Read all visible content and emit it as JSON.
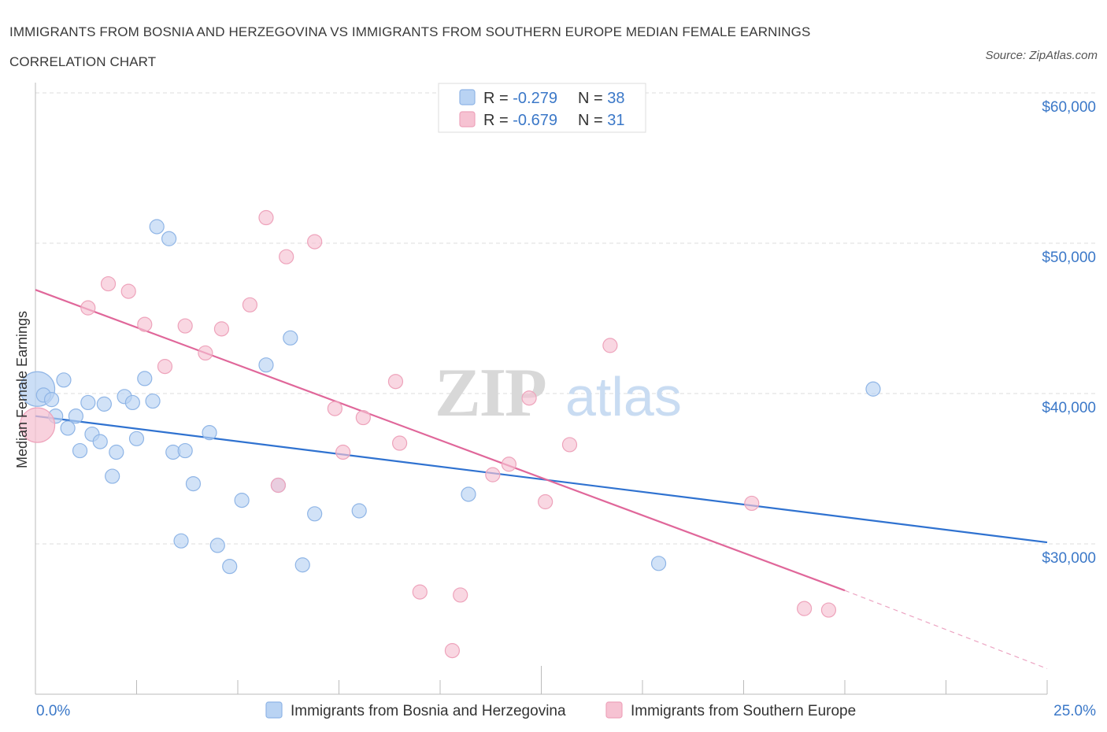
{
  "header": {
    "title_line1": "IMMIGRANTS FROM BOSNIA AND HERZEGOVINA VS IMMIGRANTS FROM SOUTHERN EUROPE MEDIAN FEMALE EARNINGS",
    "title_line2": "CORRELATION CHART",
    "source": "Source: ZipAtlas.com"
  },
  "watermark": {
    "zip": "ZIP",
    "atlas": "atlas"
  },
  "colors": {
    "blue_fill": "#b9d3f3",
    "blue_stroke": "#8fb5e6",
    "blue_line": "#2f72d0",
    "pink_fill": "#f6c2d2",
    "pink_stroke": "#eea3bb",
    "pink_line": "#e0679a",
    "grid": "#dddddd",
    "axis": "#bbbbbb",
    "accent_text": "#3b78c8"
  },
  "legend": {
    "rows": [
      {
        "r_label": "R = ",
        "r_value": "-0.279",
        "n_label": "N = ",
        "n_value": "38"
      },
      {
        "r_label": "R = ",
        "r_value": "-0.679",
        "n_label": "N = ",
        "n_value": "31"
      }
    ]
  },
  "chart_data": {
    "type": "scatter",
    "ylabel": "Median Female Earnings",
    "xlim": [
      0,
      25
    ],
    "ylim": [
      20000,
      62000
    ],
    "x_tick_labels": [
      "0.0%",
      "25.0%"
    ],
    "y_ticks": [
      {
        "value": 30000,
        "label": "$30,000"
      },
      {
        "value": 40000,
        "label": "$40,000"
      },
      {
        "value": 50000,
        "label": "$50,000"
      },
      {
        "value": 60000,
        "label": "$60,000"
      }
    ],
    "grid": "horizontal-dashed",
    "legend_placement": "bottom",
    "series": [
      {
        "name": "Immigrants from Bosnia and Herzegovina",
        "color": "blue",
        "trend": {
          "x": [
            0,
            25
          ],
          "y": [
            38500,
            30100
          ]
        },
        "points": [
          {
            "x": 0.05,
            "y": 40300,
            "big": true
          },
          {
            "x": 0.2,
            "y": 39900
          },
          {
            "x": 0.4,
            "y": 39600
          },
          {
            "x": 0.5,
            "y": 38500
          },
          {
            "x": 0.7,
            "y": 40900
          },
          {
            "x": 0.8,
            "y": 37700
          },
          {
            "x": 1.0,
            "y": 38500
          },
          {
            "x": 1.1,
            "y": 36200
          },
          {
            "x": 1.3,
            "y": 39400
          },
          {
            "x": 1.4,
            "y": 37300
          },
          {
            "x": 1.6,
            "y": 36800
          },
          {
            "x": 1.7,
            "y": 39300
          },
          {
            "x": 1.9,
            "y": 34500
          },
          {
            "x": 2.0,
            "y": 36100
          },
          {
            "x": 2.2,
            "y": 39800
          },
          {
            "x": 2.4,
            "y": 39400
          },
          {
            "x": 2.5,
            "y": 37000
          },
          {
            "x": 2.7,
            "y": 41000
          },
          {
            "x": 2.9,
            "y": 39500
          },
          {
            "x": 3.0,
            "y": 51100
          },
          {
            "x": 3.3,
            "y": 50300
          },
          {
            "x": 3.4,
            "y": 36100
          },
          {
            "x": 3.6,
            "y": 30200
          },
          {
            "x": 3.7,
            "y": 36200
          },
          {
            "x": 3.9,
            "y": 34000
          },
          {
            "x": 4.3,
            "y": 37400
          },
          {
            "x": 4.5,
            "y": 29900
          },
          {
            "x": 4.8,
            "y": 28500
          },
          {
            "x": 5.1,
            "y": 32900
          },
          {
            "x": 5.7,
            "y": 41900
          },
          {
            "x": 6.0,
            "y": 33900
          },
          {
            "x": 6.3,
            "y": 43700
          },
          {
            "x": 6.6,
            "y": 28600
          },
          {
            "x": 6.9,
            "y": 32000
          },
          {
            "x": 8.0,
            "y": 32200
          },
          {
            "x": 10.7,
            "y": 33300
          },
          {
            "x": 15.4,
            "y": 28700
          },
          {
            "x": 20.7,
            "y": 40300
          }
        ]
      },
      {
        "name": "Immigrants from Southern Europe",
        "color": "pink",
        "trend": {
          "x": [
            0,
            20.0
          ],
          "y": [
            46900,
            26900
          ]
        },
        "trend_extension": {
          "x": [
            20.0,
            25
          ],
          "y": [
            26900,
            21700
          ]
        },
        "points": [
          {
            "x": 0.05,
            "y": 37900,
            "big": true
          },
          {
            "x": 1.3,
            "y": 45700
          },
          {
            "x": 1.8,
            "y": 47300
          },
          {
            "x": 2.3,
            "y": 46800
          },
          {
            "x": 2.7,
            "y": 44600
          },
          {
            "x": 3.2,
            "y": 41800
          },
          {
            "x": 3.7,
            "y": 44500
          },
          {
            "x": 4.2,
            "y": 42700
          },
          {
            "x": 4.6,
            "y": 44300
          },
          {
            "x": 5.3,
            "y": 45900
          },
          {
            "x": 5.7,
            "y": 51700
          },
          {
            "x": 6.2,
            "y": 49100
          },
          {
            "x": 6.0,
            "y": 33900
          },
          {
            "x": 6.9,
            "y": 50100
          },
          {
            "x": 7.4,
            "y": 39000
          },
          {
            "x": 7.6,
            "y": 36100
          },
          {
            "x": 8.1,
            "y": 38400
          },
          {
            "x": 8.9,
            "y": 40800
          },
          {
            "x": 9.0,
            "y": 36700
          },
          {
            "x": 9.5,
            "y": 26800
          },
          {
            "x": 10.3,
            "y": 22900
          },
          {
            "x": 10.5,
            "y": 26600
          },
          {
            "x": 11.3,
            "y": 34600
          },
          {
            "x": 11.7,
            "y": 35300
          },
          {
            "x": 12.2,
            "y": 39700
          },
          {
            "x": 12.6,
            "y": 32800
          },
          {
            "x": 13.2,
            "y": 36600
          },
          {
            "x": 14.2,
            "y": 43200
          },
          {
            "x": 17.7,
            "y": 32700
          },
          {
            "x": 19.0,
            "y": 25700
          },
          {
            "x": 19.6,
            "y": 25600
          }
        ]
      }
    ]
  }
}
